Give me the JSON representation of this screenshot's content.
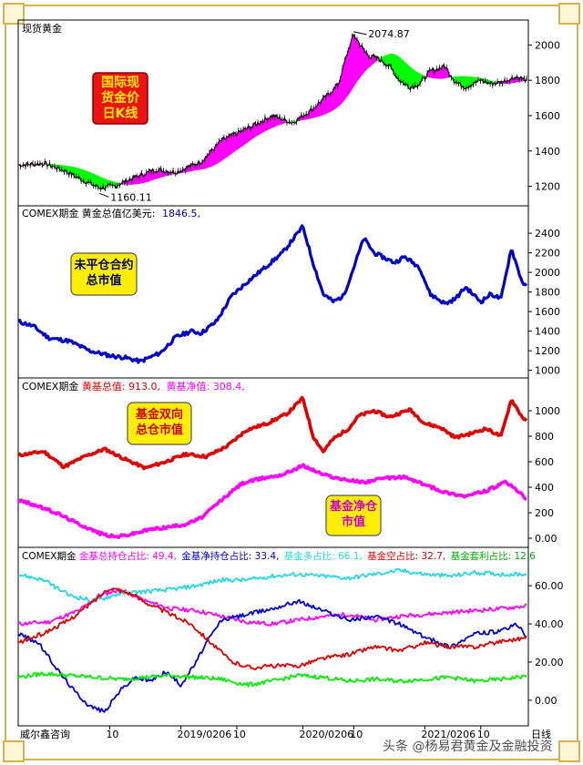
{
  "watermark": "头条 @杨易君黄金及金融投资",
  "footer": {
    "source": "威尔鑫咨询",
    "x_ticks": [
      "10",
      "2019/0206",
      "10",
      "2020/0206",
      "10",
      "2021/0206",
      "10"
    ],
    "right_label": "日线"
  },
  "colors": {
    "background": "#ffffff",
    "frame": "#d8b24a",
    "candle": "#000000",
    "up_fill": "#ff00ff",
    "down_fill": "#00ff00",
    "value_line": "#0000cc",
    "gross_line": "#e00000",
    "net_line": "#ff00ff",
    "ratio_cyan": "#22d8e8",
    "ratio_green": "#00ee00",
    "badge_red": "#ee1111",
    "badge_yellow": "#ffee00"
  },
  "chart_data": [
    {
      "type": "line",
      "panel": "spot-gold",
      "title": "现货黄金",
      "y_ticks": [
        1200,
        1400,
        1600,
        1800,
        2000
      ],
      "ylim": [
        1110,
        2100
      ],
      "annotations": [
        {
          "label": "2074.87",
          "value": 2074.87
        },
        {
          "label": "1160.11",
          "value": 1160.11
        }
      ],
      "badge": "国际现货金价日K线",
      "series": [
        {
          "x": [
            0,
            0.05,
            0.09,
            0.13,
            0.16,
            0.19,
            0.22,
            0.27,
            0.31,
            0.36,
            0.4,
            0.43,
            0.46,
            0.5,
            0.54,
            0.58,
            0.61,
            0.63,
            0.65,
            0.66,
            0.68,
            0.69,
            0.71,
            0.73,
            0.75,
            0.77,
            0.79,
            0.81,
            0.84,
            0.86,
            0.88,
            0.91,
            0.93,
            0.95,
            0.98,
            1.0
          ],
          "values": [
            1320,
            1330,
            1290,
            1230,
            1190,
            1200,
            1240,
            1295,
            1280,
            1340,
            1460,
            1500,
            1540,
            1600,
            1560,
            1640,
            1720,
            1780,
            1980,
            2060,
            1970,
            1940,
            1920,
            1880,
            1800,
            1760,
            1780,
            1850,
            1880,
            1790,
            1760,
            1800,
            1780,
            1790,
            1820,
            1800
          ]
        }
      ]
    },
    {
      "type": "line",
      "panel": "open-interest-value",
      "title": "COMEX期金 黄金总值亿美元:",
      "legend": [
        {
          "name": "1846.5,",
          "color": "#0000cc"
        }
      ],
      "y_ticks": [
        1000,
        1200,
        1400,
        1600,
        1800,
        2000,
        2200,
        2400
      ],
      "ylim": [
        950,
        2550
      ],
      "badge": "未平仓合约总市值",
      "series": [
        {
          "x": [
            0,
            0.03,
            0.06,
            0.1,
            0.14,
            0.18,
            0.21,
            0.24,
            0.28,
            0.31,
            0.34,
            0.36,
            0.39,
            0.42,
            0.45,
            0.49,
            0.52,
            0.56,
            0.58,
            0.6,
            0.62,
            0.64,
            0.66,
            0.68,
            0.7,
            0.72,
            0.74,
            0.76,
            0.79,
            0.81,
            0.84,
            0.86,
            0.88,
            0.91,
            0.93,
            0.95,
            0.97,
            0.99,
            1.0
          ],
          "values": [
            1500,
            1450,
            1330,
            1300,
            1200,
            1150,
            1130,
            1090,
            1180,
            1340,
            1400,
            1380,
            1500,
            1760,
            1900,
            2070,
            2200,
            2470,
            2100,
            1780,
            1700,
            1760,
            2050,
            2350,
            2200,
            2150,
            2100,
            2160,
            2050,
            1780,
            1680,
            1730,
            1850,
            1700,
            1780,
            1730,
            2250,
            1920,
            1846.5
          ]
        }
      ]
    },
    {
      "type": "line",
      "panel": "funds-value",
      "title": "COMEX期金",
      "legend": [
        {
          "name": "黄基总值: 913.0,",
          "color": "#e00000"
        },
        {
          "name": "黄基净值: 308.4,",
          "color": "#ff00ff"
        }
      ],
      "y_ticks": [
        0,
        200,
        400,
        600,
        800,
        1000
      ],
      "ylim": [
        -50,
        1150
      ],
      "badges": [
        "基金双向总仓市值",
        "基金净仓市值"
      ],
      "series": [
        {
          "name": "黄基总值",
          "x": [
            0,
            0.05,
            0.09,
            0.13,
            0.17,
            0.21,
            0.25,
            0.29,
            0.33,
            0.37,
            0.41,
            0.45,
            0.49,
            0.53,
            0.56,
            0.58,
            0.6,
            0.62,
            0.65,
            0.67,
            0.7,
            0.73,
            0.77,
            0.8,
            0.83,
            0.86,
            0.89,
            0.92,
            0.95,
            0.97,
            0.99,
            1.0
          ],
          "values": [
            650,
            680,
            560,
            640,
            700,
            620,
            550,
            600,
            660,
            640,
            720,
            850,
            900,
            980,
            1100,
            800,
            680,
            780,
            860,
            960,
            1000,
            950,
            1010,
            900,
            870,
            790,
            820,
            860,
            800,
            1090,
            960,
            913
          ]
        },
        {
          "name": "黄基净值",
          "x": [
            0,
            0.04,
            0.08,
            0.12,
            0.16,
            0.19,
            0.22,
            0.26,
            0.3,
            0.33,
            0.36,
            0.4,
            0.44,
            0.48,
            0.52,
            0.56,
            0.6,
            0.64,
            0.68,
            0.72,
            0.76,
            0.8,
            0.84,
            0.88,
            0.92,
            0.96,
            0.98,
            1.0
          ],
          "values": [
            300,
            250,
            190,
            110,
            40,
            10,
            30,
            70,
            90,
            110,
            160,
            300,
            430,
            470,
            500,
            570,
            500,
            460,
            440,
            470,
            480,
            420,
            360,
            330,
            370,
            440,
            380,
            308.4
          ]
        }
      ]
    },
    {
      "type": "line",
      "panel": "position-ratios",
      "title": "COMEX期金",
      "legend": [
        {
          "name": "金基总持仓占比: 49.4,",
          "color": "#ff00ff"
        },
        {
          "name": "金基净持仓占比: 33.4,",
          "color": "#0000cc"
        },
        {
          "name": "基金多占比: 66.1,",
          "color": "#22d8e8"
        },
        {
          "name": "基金空占比: 32.7,",
          "color": "#e00000"
        },
        {
          "name": "基金套利占比: 12.6",
          "color": "#00ee00"
        }
      ],
      "y_ticks": [
        0,
        20,
        40,
        60
      ],
      "ylim": [
        -12,
        72
      ],
      "series": [
        {
          "name": "金基总持仓占比",
          "x": [
            0,
            0.06,
            0.12,
            0.16,
            0.2,
            0.25,
            0.3,
            0.35,
            0.4,
            0.45,
            0.5,
            0.55,
            0.6,
            0.65,
            0.7,
            0.75,
            0.8,
            0.85,
            0.9,
            0.95,
            1.0
          ],
          "values": [
            40,
            41,
            47,
            55,
            58,
            52,
            48,
            47,
            44,
            41,
            40,
            42,
            44,
            45,
            42,
            44,
            45,
            46,
            47,
            48,
            49.4
          ]
        },
        {
          "name": "金基净持仓占比",
          "x": [
            0,
            0.04,
            0.08,
            0.11,
            0.14,
            0.17,
            0.2,
            0.23,
            0.26,
            0.29,
            0.32,
            0.35,
            0.37,
            0.4,
            0.45,
            0.5,
            0.55,
            0.6,
            0.65,
            0.7,
            0.75,
            0.8,
            0.85,
            0.9,
            0.95,
            0.98,
            1.0
          ],
          "values": [
            35,
            30,
            15,
            5,
            -3,
            -6,
            5,
            12,
            10,
            15,
            8,
            20,
            30,
            42,
            45,
            48,
            52,
            47,
            42,
            44,
            40,
            33,
            28,
            35,
            36,
            40,
            33.4
          ]
        },
        {
          "name": "基金多占比",
          "x": [
            0,
            0.05,
            0.1,
            0.15,
            0.2,
            0.25,
            0.3,
            0.35,
            0.4,
            0.45,
            0.5,
            0.55,
            0.6,
            0.65,
            0.7,
            0.75,
            0.8,
            0.85,
            0.9,
            0.95,
            1.0
          ],
          "values": [
            66,
            63,
            55,
            52,
            56,
            57,
            58,
            60,
            63,
            63,
            65,
            66,
            65,
            64,
            66,
            68,
            66,
            65,
            67,
            66,
            66.1
          ]
        },
        {
          "name": "基金空占比",
          "x": [
            0,
            0.05,
            0.1,
            0.14,
            0.18,
            0.22,
            0.26,
            0.3,
            0.34,
            0.38,
            0.42,
            0.46,
            0.5,
            0.55,
            0.6,
            0.65,
            0.7,
            0.75,
            0.8,
            0.85,
            0.9,
            0.95,
            1.0
          ],
          "values": [
            30,
            35,
            42,
            50,
            59,
            56,
            50,
            45,
            40,
            30,
            20,
            17,
            18,
            18,
            22,
            24,
            28,
            26,
            30,
            28,
            28,
            31,
            32.7
          ]
        },
        {
          "name": "基金套利占比",
          "x": [
            0,
            0.05,
            0.1,
            0.15,
            0.2,
            0.25,
            0.3,
            0.35,
            0.4,
            0.45,
            0.5,
            0.55,
            0.6,
            0.65,
            0.7,
            0.75,
            0.8,
            0.85,
            0.9,
            0.95,
            1.0
          ],
          "values": [
            12,
            14,
            13,
            12,
            11,
            12,
            13,
            12,
            11,
            8,
            10,
            13,
            12,
            10,
            11,
            10,
            11,
            12,
            10,
            11,
            12.6
          ]
        }
      ]
    }
  ]
}
